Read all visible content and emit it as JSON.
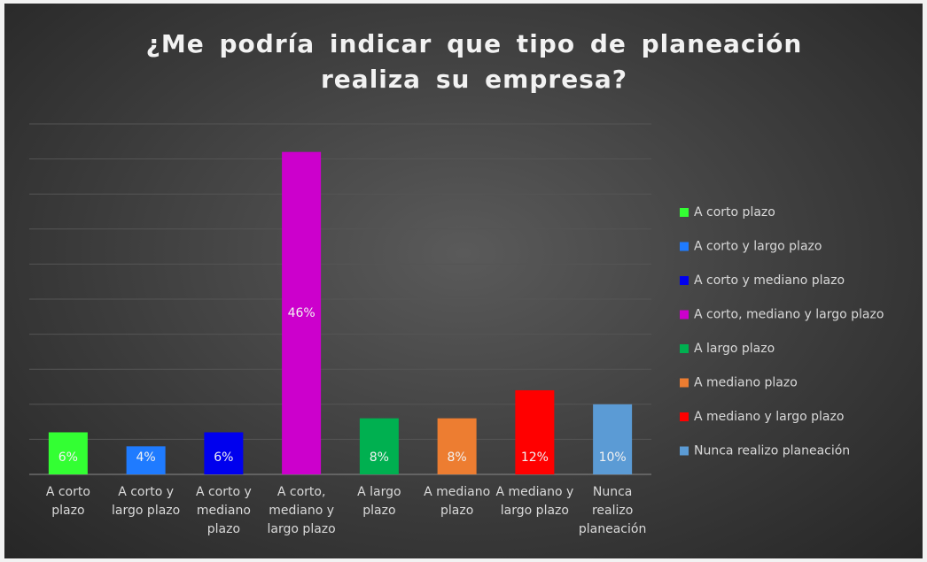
{
  "chart_data": {
    "type": "bar",
    "title": "¿Me podría indicar que tipo de planeación realiza su empresa?",
    "categories": [
      "A corto plazo",
      "A corto y largo plazo",
      "A corto y mediano plazo",
      "A corto, mediano y largo plazo",
      "A largo plazo",
      "A mediano plazo",
      "A mediano y largo plazo",
      "Nunca realizo planeación"
    ],
    "values": [
      6,
      4,
      6,
      46,
      8,
      8,
      12,
      10
    ],
    "value_labels": [
      "6%",
      "4%",
      "6%",
      "46%",
      "8%",
      "8%",
      "12%",
      "10%"
    ],
    "colors": [
      "#33ff33",
      "#1f7bff",
      "#0000ee",
      "#cc00cc",
      "#00b050",
      "#ed7d31",
      "#ff0000",
      "#5b9bd5"
    ],
    "ylim": [
      0,
      50
    ],
    "yticks": [
      0,
      5,
      10,
      15,
      20,
      25,
      30,
      35,
      40,
      45,
      50
    ],
    "grid": true,
    "legend": "right"
  }
}
